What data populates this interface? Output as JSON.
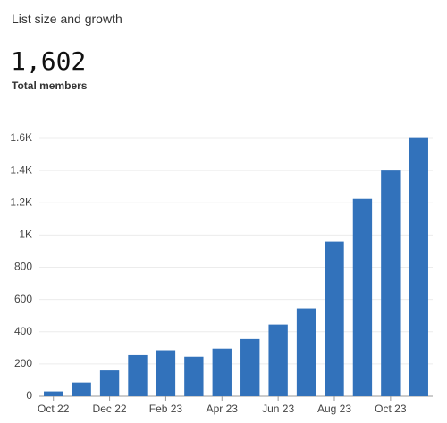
{
  "title": "List size and growth",
  "summary": {
    "value": "1,602",
    "label": "Total members"
  },
  "chart_data": {
    "type": "bar",
    "categories": [
      "Oct 22",
      null,
      "Dec 22",
      null,
      "Feb 23",
      null,
      "Apr 23",
      null,
      "Jun 23",
      null,
      "Aug 23",
      null,
      "Oct 23",
      null
    ],
    "values": [
      30,
      85,
      160,
      255,
      285,
      245,
      295,
      355,
      445,
      545,
      960,
      1225,
      1400,
      1602
    ],
    "color": "#3272bb",
    "ylim": [
      0,
      1600
    ],
    "yticks": [
      0,
      200,
      400,
      600,
      800,
      {
        "value": 1000,
        "label": "1K"
      },
      {
        "value": 1200,
        "label": "1.2K"
      },
      {
        "value": 1400,
        "label": "1.4K"
      },
      {
        "value": 1600,
        "label": "1.6K"
      }
    ],
    "grid": true
  }
}
